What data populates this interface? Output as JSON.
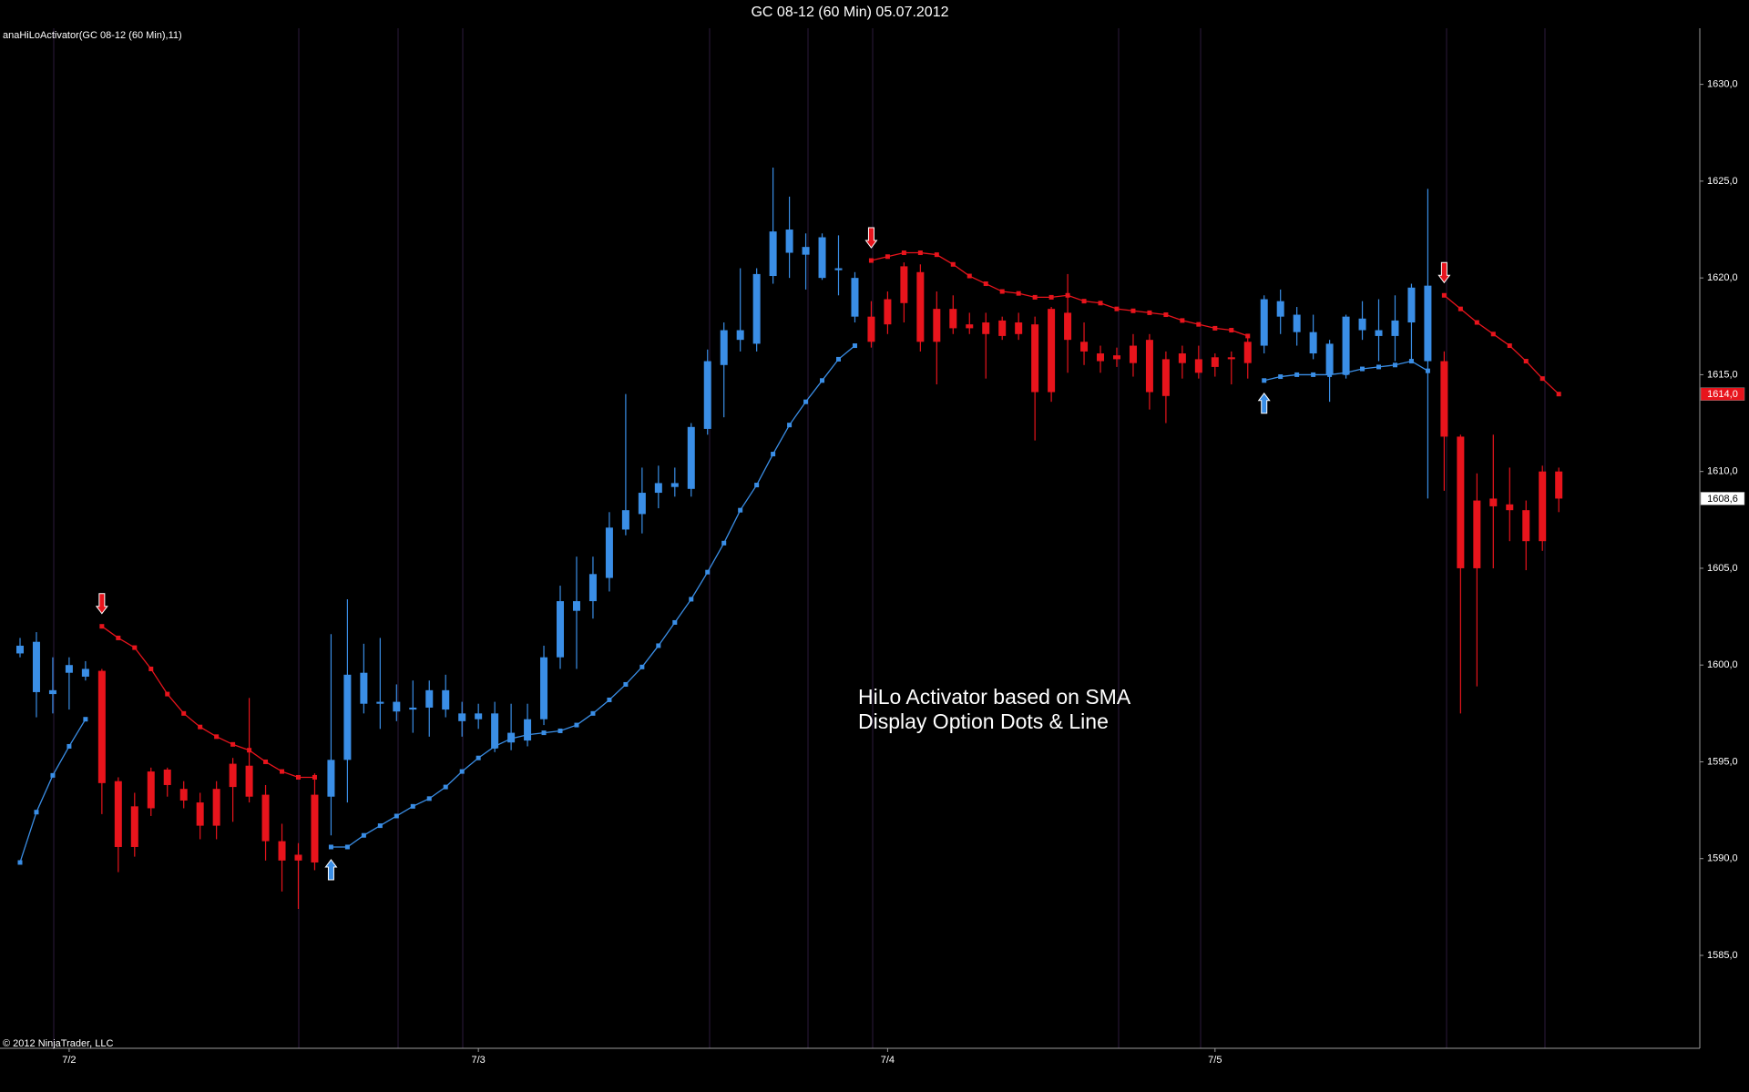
{
  "chart_data": {
    "type": "candlestick",
    "title": "GC 08-12 (60 Min)  05.07.2012",
    "indicator_label": "anaHiLoActivator(GC 08-12 (60 Min),11)",
    "copyright": "© 2012 NinjaTrader, LLC",
    "annotations": [
      "HiLo Activator based on SMA",
      "Display Option Dots & Line"
    ],
    "categories": [
      null,
      null,
      null,
      "7/2",
      null,
      null,
      null,
      null,
      null,
      null,
      null,
      null,
      null,
      null,
      null,
      null,
      null,
      null,
      null,
      null,
      null,
      null,
      null,
      null,
      null,
      null,
      null,
      null,
      "7/3",
      null,
      null,
      null,
      null,
      null,
      null,
      null,
      null,
      null,
      null,
      null,
      null,
      null,
      null,
      null,
      null,
      null,
      null,
      null,
      null,
      null,
      null,
      null,
      null,
      "7/4",
      null,
      null,
      null,
      null,
      null,
      null,
      null,
      null,
      null,
      null,
      null,
      null,
      null,
      null,
      null,
      null,
      null,
      null,
      null,
      "7/5",
      null,
      null,
      null,
      null,
      null,
      null,
      null,
      null,
      null,
      null,
      null,
      null,
      null,
      null,
      null,
      null,
      null,
      null,
      null,
      null,
      null
    ],
    "open": [
      1600.6,
      1601.2,
      1598.7,
      1599.6,
      1599.8,
      1599.7,
      1594.0,
      1592.7,
      1594.5,
      1594.6,
      1593.6,
      1592.9,
      1593.6,
      1594.9,
      1594.8,
      1593.3,
      1590.9,
      1590.2,
      1593.3,
      1593.2,
      1595.1,
      1598.0,
      1598.0,
      1597.6,
      1597.8,
      1597.8,
      1598.7,
      1597.5,
      1597.2,
      1597.5,
      1596.0,
      1596.1,
      1597.2,
      1600.4,
      1602.8,
      1603.3,
      1604.5,
      1607.0,
      1607.8,
      1608.9,
      1609.2,
      1609.1,
      1612.2,
      1615.5,
      1616.8,
      1616.6,
      1620.1,
      1621.3,
      1621.2,
      1622.1,
      1620.5,
      1620.0,
      1618.0,
      1618.9,
      1620.6,
      1620.3,
      1618.4,
      1618.4,
      1617.6,
      1617.7,
      1617.8,
      1617.7,
      1617.6,
      1618.4,
      1618.2,
      1616.7,
      1616.1,
      1616.0,
      1616.5,
      1616.8,
      1615.8,
      1616.1,
      1615.8,
      1615.9,
      1615.9,
      1616.7,
      1616.5,
      1618.8,
      1618.1,
      1617.2,
      1616.6,
      1618.0,
      1617.9,
      1617.3,
      1617.8,
      1619.5,
      1619.6,
      1615.7,
      1611.8,
      1608.5,
      1608.6,
      1608.3,
      1608.0,
      1610.0,
      1610.0
    ],
    "high": [
      1601.4,
      1601.7,
      1600.4,
      1600.4,
      1600.2,
      1599.8,
      1594.2,
      1593.4,
      1594.7,
      1594.7,
      1594.0,
      1593.4,
      1594.0,
      1595.2,
      1598.3,
      1593.8,
      1591.8,
      1590.8,
      1594.4,
      1601.6,
      1603.4,
      1601.1,
      1601.4,
      1599.0,
      1599.2,
      1599.2,
      1599.5,
      1598.1,
      1598.0,
      1598.1,
      1598.0,
      1598.0,
      1601.0,
      1604.1,
      1605.6,
      1605.6,
      1607.9,
      1614.0,
      1610.2,
      1610.3,
      1610.2,
      1612.5,
      1616.3,
      1617.7,
      1620.5,
      1620.5,
      1625.7,
      1624.2,
      1622.3,
      1622.3,
      1622.2,
      1620.3,
      1618.8,
      1619.3,
      1620.8,
      1620.7,
      1619.3,
      1619.1,
      1618.2,
      1618.2,
      1618.0,
      1618.2,
      1618.0,
      1618.5,
      1620.2,
      1617.7,
      1616.5,
      1616.4,
      1617.1,
      1617.1,
      1616.2,
      1616.5,
      1616.5,
      1616.1,
      1616.2,
      1617.1,
      1619.1,
      1619.4,
      1618.5,
      1618.1,
      1616.8,
      1618.1,
      1618.8,
      1618.9,
      1619.1,
      1619.7,
      1624.6,
      1616.2,
      1611.9,
      1609.9,
      1611.9,
      1610.2,
      1608.5,
      1610.3,
      1610.2
    ],
    "low": [
      1600.4,
      1597.3,
      1597.5,
      1597.7,
      1599.2,
      1592.3,
      1589.3,
      1590.1,
      1592.2,
      1593.2,
      1592.6,
      1591.0,
      1591.0,
      1591.9,
      1592.9,
      1589.9,
      1588.3,
      1587.4,
      1589.4,
      1591.2,
      1592.9,
      1597.5,
      1596.7,
      1597.1,
      1596.5,
      1596.3,
      1597.3,
      1596.3,
      1596.7,
      1595.5,
      1595.6,
      1595.8,
      1596.9,
      1599.8,
      1599.8,
      1602.4,
      1603.8,
      1606.7,
      1606.8,
      1608.1,
      1608.7,
      1608.7,
      1611.9,
      1612.8,
      1616.2,
      1616.2,
      1619.7,
      1620.0,
      1619.4,
      1619.9,
      1619.1,
      1617.7,
      1616.4,
      1617.1,
      1617.7,
      1616.2,
      1614.5,
      1617.1,
      1617.1,
      1614.8,
      1616.8,
      1616.8,
      1611.6,
      1613.6,
      1615.1,
      1615.5,
      1615.1,
      1615.4,
      1614.9,
      1613.2,
      1612.5,
      1614.8,
      1614.8,
      1614.9,
      1614.5,
      1614.8,
      1616.1,
      1617.1,
      1616.5,
      1615.8,
      1613.6,
      1614.8,
      1616.8,
      1615.7,
      1615.7,
      1615.7,
      1608.6,
      1609.0,
      1597.5,
      1598.9,
      1605.0,
      1606.4,
      1604.9,
      1605.9,
      1607.9
    ],
    "close": [
      1601.0,
      1598.6,
      1598.5,
      1600.0,
      1599.4,
      1593.9,
      1590.6,
      1590.6,
      1592.6,
      1593.8,
      1593.0,
      1591.7,
      1591.7,
      1593.7,
      1593.2,
      1590.9,
      1589.9,
      1589.9,
      1589.8,
      1595.1,
      1599.5,
      1599.6,
      1598.1,
      1598.1,
      1597.7,
      1598.7,
      1597.7,
      1597.1,
      1597.5,
      1595.7,
      1596.5,
      1597.2,
      1600.4,
      1603.3,
      1603.3,
      1604.7,
      1607.1,
      1608.0,
      1608.9,
      1609.4,
      1609.4,
      1612.3,
      1615.7,
      1617.3,
      1617.3,
      1620.2,
      1622.4,
      1622.5,
      1621.6,
      1620.0,
      1620.4,
      1618.0,
      1616.7,
      1617.6,
      1618.7,
      1616.7,
      1616.7,
      1617.4,
      1617.4,
      1617.1,
      1617.0,
      1617.1,
      1614.1,
      1614.1,
      1616.8,
      1616.2,
      1615.7,
      1615.8,
      1615.6,
      1614.1,
      1613.9,
      1615.6,
      1615.1,
      1615.4,
      1615.8,
      1615.6,
      1618.9,
      1618.0,
      1617.2,
      1616.1,
      1615.0,
      1615.0,
      1617.3,
      1617.0,
      1617.0,
      1617.7,
      1615.7,
      1611.8,
      1605.0,
      1605.0,
      1608.2,
      1608.0,
      1606.4,
      1606.4,
      1608.6
    ],
    "hilo_up": {
      "color": "#3a8ee6",
      "values": [
        1589.8,
        1592.4,
        1594.3,
        1595.8,
        1597.2,
        null,
        null,
        null,
        null,
        null,
        null,
        null,
        null,
        null,
        null,
        null,
        null,
        null,
        null,
        1590.6,
        1590.6,
        1591.2,
        1591.7,
        1592.2,
        1592.7,
        1593.1,
        1593.7,
        1594.5,
        1595.2,
        1595.8,
        1596.2,
        1596.4,
        1596.5,
        1596.6,
        1596.9,
        1597.5,
        1598.2,
        1599.0,
        1599.9,
        1601.0,
        1602.2,
        1603.4,
        1604.8,
        1606.3,
        1608.0,
        1609.3,
        1610.9,
        1612.4,
        1613.6,
        1614.7,
        1615.8,
        1616.5,
        null,
        null,
        null,
        null,
        null,
        null,
        null,
        null,
        null,
        null,
        null,
        null,
        null,
        null,
        null,
        null,
        null,
        null,
        null,
        null,
        null,
        null,
        null,
        null,
        1614.7,
        1614.9,
        1615.0,
        1615.0,
        1615.0,
        1615.1,
        1615.3,
        1615.4,
        1615.5,
        1615.7,
        1615.2,
        null,
        null,
        null,
        null,
        null,
        null,
        null,
        null
      ]
    },
    "hilo_down": {
      "color": "#e8141c",
      "values": [
        null,
        null,
        null,
        null,
        null,
        1602.0,
        1601.4,
        1600.9,
        1599.8,
        1598.5,
        1597.5,
        1596.8,
        1596.3,
        1595.9,
        1595.6,
        1595.0,
        1594.5,
        1594.2,
        1594.2,
        null,
        null,
        null,
        null,
        null,
        null,
        null,
        null,
        null,
        null,
        null,
        null,
        null,
        null,
        null,
        null,
        null,
        null,
        null,
        null,
        null,
        null,
        null,
        null,
        null,
        null,
        null,
        null,
        null,
        null,
        null,
        null,
        null,
        1620.9,
        1621.1,
        1621.3,
        1621.3,
        1621.2,
        1620.7,
        1620.1,
        1619.7,
        1619.3,
        1619.2,
        1619.0,
        1619.0,
        1619.1,
        1618.8,
        1618.7,
        1618.4,
        1618.3,
        1618.2,
        1618.1,
        1617.8,
        1617.6,
        1617.4,
        1617.3,
        1617.0,
        null,
        null,
        null,
        null,
        null,
        null,
        null,
        null,
        null,
        null,
        null,
        1619.1,
        1618.4,
        1617.7,
        1617.1,
        1616.5,
        1615.7,
        1614.8,
        1614.0
      ]
    },
    "ylim": [
      1580.2,
      1632.9
    ],
    "yticks": [
      {
        "value": 1585,
        "label": "1585,0"
      },
      {
        "value": 1590,
        "label": "1590,0"
      },
      {
        "value": 1595,
        "label": "1595,0"
      },
      {
        "value": 1600,
        "label": "1600,0"
      },
      {
        "value": 1605,
        "label": "1605,0"
      },
      {
        "value": 1610,
        "label": "1610,0"
      },
      {
        "value": 1615,
        "label": "1615,0"
      },
      {
        "value": 1620,
        "label": "1620,0"
      },
      {
        "value": 1625,
        "label": "1625,0"
      },
      {
        "value": 1630,
        "label": "1630,0"
      }
    ],
    "price_markers": [
      {
        "value": 1614.0,
        "label": "1614,0",
        "color": "#e8141c"
      },
      {
        "value": 1608.6,
        "label": "1608,6",
        "color": "#ffffff"
      }
    ]
  }
}
